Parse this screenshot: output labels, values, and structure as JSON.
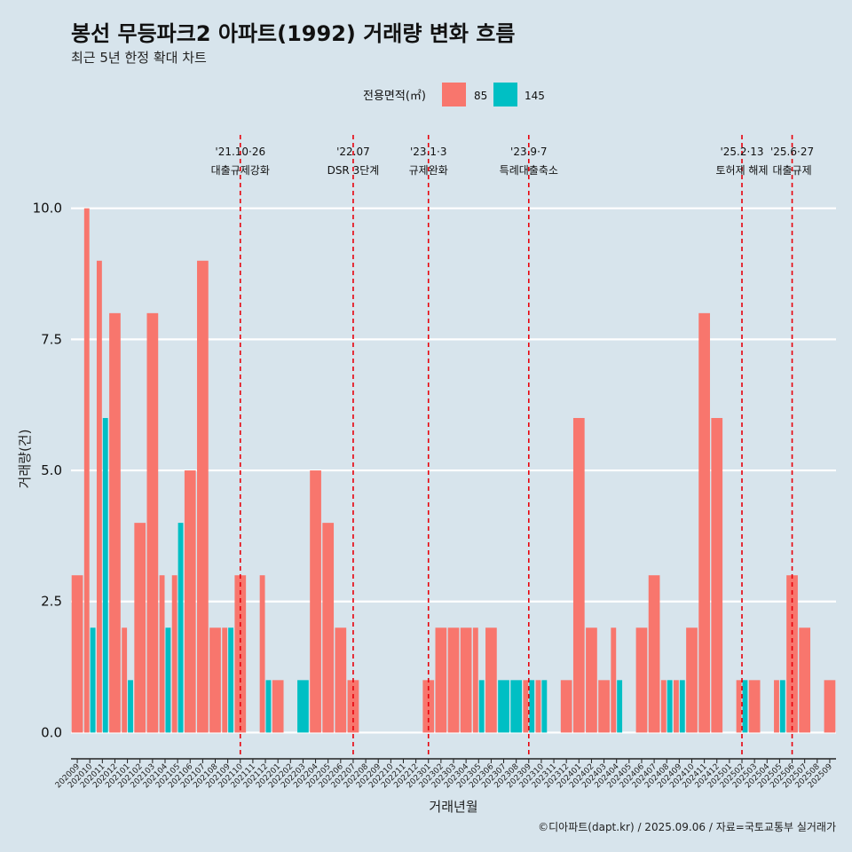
{
  "chart_data": {
    "type": "bar",
    "title": "봉선 무등파크2 아파트(1992) 거래량 변화 흐름",
    "subtitle": "최근 5년 한정 확대 차트",
    "xlabel": "거래년월",
    "ylabel": "거래량(건)",
    "ylim": [
      -0.45,
      11.4
    ],
    "yticks": [
      0.0,
      2.5,
      5.0,
      7.5,
      10.0
    ],
    "ytick_labels": [
      "0.0",
      "2.5",
      "5.0",
      "7.5",
      "10.0"
    ],
    "grid": true,
    "legend": {
      "title": "전용면적(㎡)",
      "placement": "top",
      "entries": [
        {
          "name": "85",
          "color": "#F8766D"
        },
        {
          "name": "145",
          "color": "#00BFC4"
        }
      ]
    },
    "categories": [
      "202009",
      "202010",
      "202011",
      "202012",
      "202101",
      "202102",
      "202103",
      "202104",
      "202105",
      "202106",
      "202107",
      "202108",
      "202109",
      "202110",
      "202111",
      "202112",
      "202201",
      "202202",
      "202203",
      "202204",
      "202205",
      "202206",
      "202207",
      "202208",
      "202209",
      "202210",
      "202211",
      "202212",
      "202301",
      "202302",
      "202303",
      "202304",
      "202305",
      "202306",
      "202307",
      "202308",
      "202309",
      "202310",
      "202311",
      "202312",
      "202401",
      "202402",
      "202403",
      "202404",
      "202405",
      "202406",
      "202407",
      "202408",
      "202409",
      "202410",
      "202411",
      "202412",
      "202501",
      "202502",
      "202503",
      "202504",
      "202505",
      "202506",
      "202507",
      "202508",
      "202509"
    ],
    "tick_labels": [
      "202009",
      "202010",
      "202011",
      "202012",
      "202101",
      "202102",
      "202103",
      "202104",
      "202105",
      "202106",
      "202107",
      "202108",
      "202109",
      "202110",
      "202111",
      "202112",
      "202201",
      "202202",
      "202203",
      "202204",
      "202205",
      "202206",
      "202207",
      "202208",
      "202209",
      "202210",
      "202211",
      "202212",
      "202301",
      "202302",
      "202303",
      "202304",
      "202305",
      "202306",
      "202307",
      "202308",
      "202309",
      "202310",
      "202311",
      "202312",
      "202401",
      "202402",
      "202403",
      "202404",
      "202405",
      "202406",
      "202407",
      "202408",
      "202409",
      "202410",
      "202411",
      "202412",
      "202501",
      "202502",
      "202503",
      "202504",
      "202505",
      "202506",
      "202507",
      "202508",
      "202509"
    ],
    "series": [
      {
        "name": "85",
        "color": "#F8766D",
        "values": [
          3,
          10,
          9,
          8,
          2,
          4,
          8,
          3,
          3,
          5,
          9,
          2,
          2,
          3,
          0,
          3,
          1,
          0,
          0,
          5,
          4,
          2,
          1,
          0,
          0,
          0,
          0,
          0,
          1,
          2,
          2,
          2,
          2,
          2,
          0,
          0,
          1,
          1,
          0,
          1,
          6,
          2,
          1,
          2,
          0,
          2,
          3,
          1,
          1,
          2,
          8,
          6,
          0,
          1,
          1,
          0,
          1,
          3,
          2,
          0,
          1
        ]
      },
      {
        "name": "145",
        "color": "#00BFC4",
        "values": [
          0,
          2,
          6,
          0,
          1,
          0,
          0,
          2,
          4,
          0,
          0,
          0,
          2,
          0,
          0,
          1,
          0,
          0,
          1,
          0,
          0,
          0,
          0,
          0,
          0,
          0,
          0,
          0,
          0,
          0,
          0,
          0,
          1,
          0,
          1,
          1,
          1,
          1,
          0,
          0,
          0,
          0,
          0,
          1,
          0,
          0,
          0,
          1,
          1,
          0,
          0,
          0,
          0,
          1,
          0,
          0,
          1,
          0,
          0,
          0,
          0
        ]
      }
    ],
    "events": [
      {
        "month": "202110",
        "label1": "'21.10·26",
        "label2": "대출규제강화"
      },
      {
        "month": "202207",
        "label1": "'22.07",
        "label2": "DSR 3단계"
      },
      {
        "month": "202301",
        "label1": "'23.1·3",
        "label2": "규제완화"
      },
      {
        "month": "202309",
        "label1": "'23.9·7",
        "label2": "특례대출축소"
      },
      {
        "month": "202502",
        "label1": "'25.2·13",
        "label2": "토허제 해제"
      },
      {
        "month": "202506",
        "label1": "'25.6·27",
        "label2": "대출규제"
      }
    ],
    "event_line_color": "#e8000b"
  },
  "caption": "©디아파트(dapt.kr) / 2025.09.06 / 자료=국토교통부 실거래가"
}
